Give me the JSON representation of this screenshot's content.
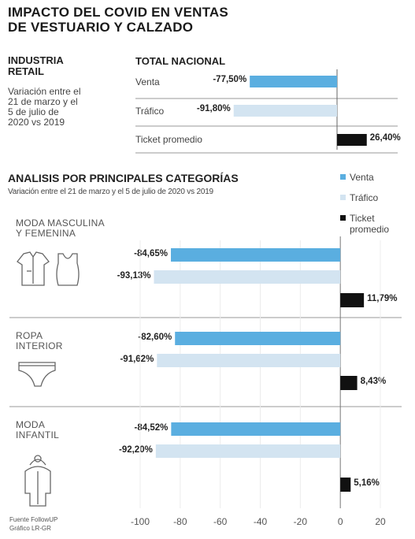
{
  "title": {
    "line1": "IMPACTO DEL COVID EN VENTAS",
    "line2": "DE VESTUARIO Y CALZADO"
  },
  "industry": {
    "title_line1": "INDUSTRIA",
    "title_line2": "RETAIL",
    "subtitle_lines": [
      "Variación entre el",
      "21 de marzo y el",
      "5 de julio de",
      "2020  vs 2019"
    ]
  },
  "colors": {
    "venta": "#5aaee0",
    "trafico": "#d3e4f1",
    "ticket": "#111111",
    "divider": "#9a9a9a"
  },
  "chart_data": [
    {
      "type": "bar",
      "title": "TOTAL NACIONAL",
      "categories": [
        "Venta",
        "Tráfico",
        "Ticket promedio"
      ],
      "values": [
        -77.5,
        -91.8,
        26.4
      ],
      "value_labels": [
        "-77,50%",
        "-91,80%",
        "26,40%"
      ]
    },
    {
      "type": "bar",
      "title": "ANALISIS POR PRINCIPALES CATEGORÍAS",
      "subtitle": "Variación entre el 21 de marzo y el 5 de julio de 2020  vs 2019",
      "legend": [
        "Venta",
        "Tráfico",
        "Ticket promedio"
      ],
      "legend_position": "top-right",
      "xlim": [
        -100,
        20
      ],
      "xticks": [
        "-100",
        "-80",
        "-60",
        "-40",
        "-20",
        "0",
        "20"
      ],
      "groups": [
        {
          "label_lines": [
            "MODA MASCULINA",
            "Y FEMENINA"
          ],
          "values": [
            -84.65,
            -93.13,
            11.79
          ],
          "value_labels": [
            "-84,65%",
            "-93,13%",
            "11,79%"
          ]
        },
        {
          "label_lines": [
            "ROPA",
            "INTERIOR"
          ],
          "values": [
            -82.6,
            -91.62,
            8.43
          ],
          "value_labels": [
            "-82,60%",
            "-91,62%",
            "8,43%"
          ]
        },
        {
          "label_lines": [
            "MODA",
            "INFANTIL"
          ],
          "values": [
            -84.52,
            -92.2,
            5.16
          ],
          "value_labels": [
            "-84,52%",
            "-92,20%",
            "5,16%"
          ]
        }
      ]
    }
  ],
  "legend_labels": {
    "venta": "Venta",
    "trafico": "Tráfico",
    "ticket_line1": "Ticket",
    "ticket_line2": "promedio"
  },
  "footer": {
    "line1": "Fuente FollowUP",
    "line2": "Gráfico LR-GR"
  }
}
